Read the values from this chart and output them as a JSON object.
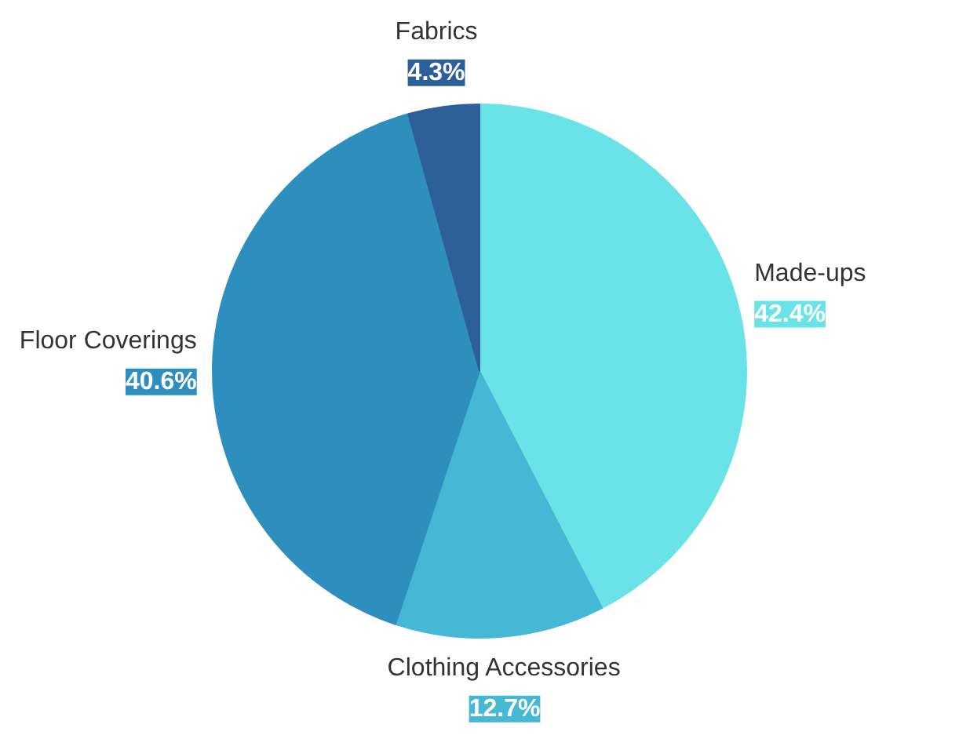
{
  "chart_data": {
    "type": "pie",
    "categories": [
      "Made-ups",
      "Clothing Accessories",
      "Floor Coverings",
      "Fabrics"
    ],
    "values": [
      42.4,
      12.7,
      40.6,
      4.3
    ],
    "colors": [
      "#6ae3e8",
      "#45b8d6",
      "#2e8fbf",
      "#2d5f9a"
    ],
    "value_labels": [
      "42.4%",
      "12.7%",
      "40.6%",
      "4.3%"
    ]
  }
}
